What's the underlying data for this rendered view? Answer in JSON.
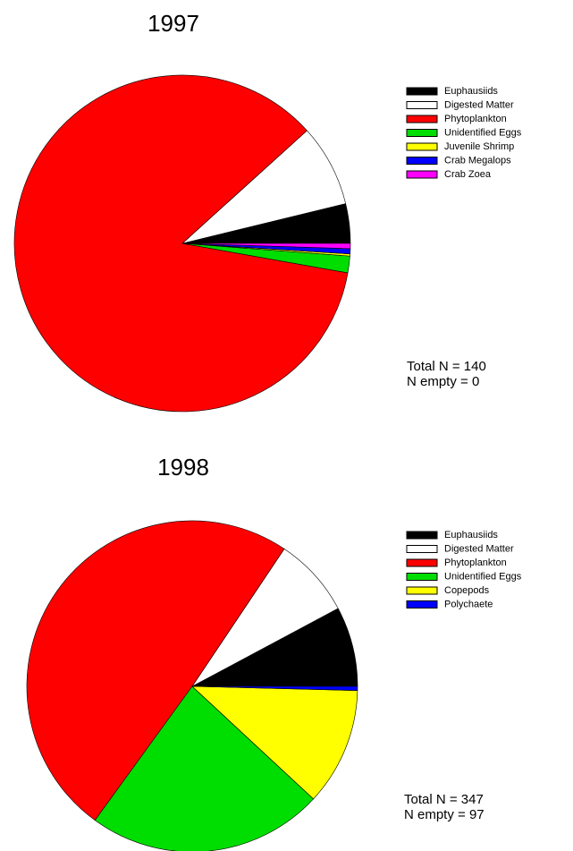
{
  "chart_data": [
    {
      "type": "pie",
      "title": "1997",
      "categories": [
        "Euphausiids",
        "Digested Matter",
        "Phytoplankton",
        "Unidentified Eggs",
        "Juvenile Shrimp",
        "Crab Megalops",
        "Crab Zoea"
      ],
      "values": [
        3.8,
        7.9,
        85.5,
        1.6,
        0.2,
        0.5,
        0.5
      ],
      "colors": [
        "#000000",
        "#ffffff",
        "#ff0000",
        "#00dd00",
        "#ffff00",
        "#0000ff",
        "#ff00ff"
      ],
      "annotations": [
        "Total N = 140",
        "N empty = 0"
      ]
    },
    {
      "type": "pie",
      "title": "1998",
      "categories": [
        "Euphausiids",
        "Digested Matter",
        "Phytoplankton",
        "Unidentified Eggs",
        "Copepods",
        "Polychaete"
      ],
      "values": [
        7.8,
        7.8,
        49.4,
        23.1,
        11.5,
        0.4
      ],
      "colors": [
        "#000000",
        "#ffffff",
        "#ff0000",
        "#00dd00",
        "#ffff00",
        "#0000ff"
      ],
      "annotations": [
        "Total N = 347",
        "N empty = 97"
      ]
    }
  ]
}
